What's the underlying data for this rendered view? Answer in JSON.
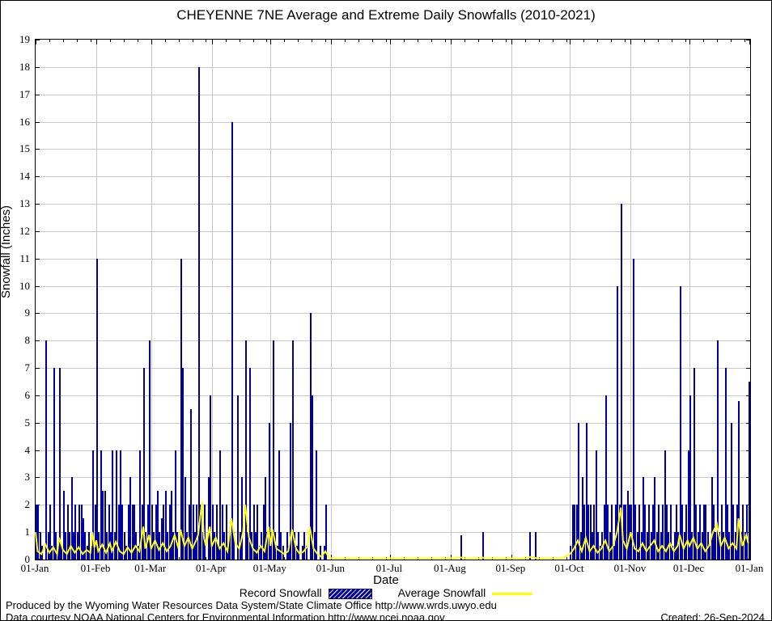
{
  "title": "CHEYENNE 7NE Average and Extreme Daily Snowfalls (2010-2021)",
  "legend": {
    "record_label": "Record Snowfall",
    "average_label": "Average Snowfall"
  },
  "footer": {
    "line1": "Produced by the Wyoming Water Resources Data System/State Climate Office http://www.wrds.uwyo.edu",
    "line2": "Data courtesy NOAA National Centers for Environmental Information http://www.ncei.noaa.gov",
    "created": "Created: 26-Sep-2024"
  },
  "colors": {
    "record_bar": "#0000a0",
    "average_line": "#ffff00",
    "gridline": "#c8c8c8",
    "axis": "#000000",
    "background": "#ffffff"
  },
  "chart_data": {
    "type": "bar",
    "title": "CHEYENNE 7NE Average and Extreme Daily Snowfalls (2010-2021)",
    "xlabel": "Date",
    "ylabel": "Snowfall (Inches)",
    "ylim": [
      0,
      19
    ],
    "y_tick_step": 1,
    "grid": true,
    "legend_position": "bottom",
    "days_in_year": 365,
    "x_tick_labels": [
      "01-Jan",
      "01-Feb",
      "01-Mar",
      "01-Apr",
      "01-May",
      "01-Jun",
      "01-Jul",
      "01-Aug",
      "01-Sep",
      "01-Oct",
      "01-Nov",
      "01-Dec",
      "01-Jan"
    ],
    "month_start_days": [
      1,
      32,
      60,
      91,
      121,
      152,
      182,
      213,
      244,
      274,
      305,
      335,
      366
    ],
    "series": [
      {
        "name": "Record Snowfall",
        "type": "bar",
        "color": "#0000a0",
        "values_daily": [
          2,
          2,
          1,
          0.5,
          0,
          8,
          1,
          2,
          0.5,
          7,
          1,
          0.5,
          7,
          0.5,
          2.5,
          1,
          2,
          1,
          3,
          1,
          2,
          1,
          2,
          2,
          1.5,
          1,
          0.5,
          1,
          0.5,
          4,
          2,
          11,
          1,
          4,
          2.5,
          2.5,
          1,
          2,
          1,
          4,
          1,
          4,
          2,
          4,
          2,
          1,
          0.5,
          2,
          3,
          2,
          2,
          1,
          0.5,
          4,
          2,
          7,
          1,
          2,
          8,
          2,
          1,
          2,
          2.5,
          1,
          1.5,
          2,
          2.5,
          1,
          2,
          2.5,
          1,
          4,
          1,
          0,
          11,
          7,
          3,
          1,
          2,
          5.5,
          2,
          1,
          2,
          18,
          2,
          1,
          2,
          0,
          3,
          6,
          2,
          1,
          2,
          0.5,
          4,
          2,
          1,
          2,
          0.5,
          1,
          16,
          1,
          0,
          6,
          1,
          3,
          0,
          8,
          1,
          7,
          1,
          2,
          1,
          2,
          0.5,
          1,
          2,
          3,
          1,
          5,
          1,
          8,
          1,
          0.5,
          4,
          1,
          0.5,
          0,
          1,
          0.5,
          5,
          8,
          1,
          0.5,
          1,
          0,
          0.5,
          1,
          0.5,
          0,
          9,
          6,
          1,
          4,
          0,
          0.5,
          0,
          0.5,
          2,
          0,
          0,
          0,
          0,
          0,
          0,
          0,
          0,
          0,
          0,
          0,
          0,
          0,
          0,
          0,
          0,
          0,
          0,
          0,
          0,
          0,
          0,
          0,
          0,
          0,
          0,
          0,
          0,
          0,
          0,
          0,
          0,
          0,
          0,
          0,
          0,
          0,
          0,
          0,
          0,
          0,
          0,
          0,
          0,
          0,
          0,
          0,
          0,
          0,
          0,
          0,
          0,
          0,
          0,
          0,
          0,
          0,
          0,
          0,
          0,
          0,
          0,
          0,
          0,
          0,
          0,
          0,
          0,
          0.9,
          0,
          0,
          0,
          0,
          0,
          0,
          0,
          0,
          0,
          0,
          1,
          0,
          0,
          0,
          0,
          0,
          0,
          0,
          0,
          0,
          0,
          0,
          0,
          0,
          0,
          0,
          0,
          0,
          0,
          0,
          0,
          0,
          0,
          0,
          1,
          0,
          0,
          1,
          0,
          0,
          0,
          0,
          0,
          0,
          0,
          0,
          0,
          0,
          0,
          0,
          0,
          0,
          0,
          0,
          0,
          0.5,
          2,
          2,
          2,
          5,
          1,
          3,
          2,
          5,
          2,
          2,
          1,
          2,
          4,
          1,
          0.5,
          1,
          2,
          6,
          2,
          1,
          2,
          0.5,
          2,
          10,
          2,
          13,
          2,
          2,
          2.5,
          2,
          2,
          11,
          2,
          1,
          2,
          1,
          3,
          2,
          1,
          2,
          1,
          2,
          3,
          1,
          2,
          1,
          2,
          4,
          2,
          1,
          2,
          0.5,
          1,
          2,
          1,
          10,
          2,
          1,
          2,
          4,
          6,
          1,
          7,
          2,
          1,
          2,
          1,
          2,
          2,
          1,
          0.5,
          3,
          2,
          1,
          8,
          1,
          2,
          1,
          7,
          2,
          1,
          5,
          2,
          1,
          2,
          5.8,
          1,
          2,
          1,
          2,
          6.5
        ]
      },
      {
        "name": "Average Snowfall",
        "type": "line",
        "color": "#ffff00",
        "points": [
          [
            1,
            1.0
          ],
          [
            2,
            0.3
          ],
          [
            4,
            0.2
          ],
          [
            6,
            0.55
          ],
          [
            8,
            0.25
          ],
          [
            10,
            0.45
          ],
          [
            12,
            0.2
          ],
          [
            13,
            0.8
          ],
          [
            15,
            0.35
          ],
          [
            17,
            0.2
          ],
          [
            19,
            0.5
          ],
          [
            21,
            0.25
          ],
          [
            23,
            0.45
          ],
          [
            25,
            0.2
          ],
          [
            27,
            0.35
          ],
          [
            29,
            0.25
          ],
          [
            30,
            1.0
          ],
          [
            31,
            0.45
          ],
          [
            32,
            0.7
          ],
          [
            33,
            0.3
          ],
          [
            35,
            0.55
          ],
          [
            37,
            0.25
          ],
          [
            39,
            0.6
          ],
          [
            40,
            0.3
          ],
          [
            42,
            0.65
          ],
          [
            44,
            0.3
          ],
          [
            46,
            0.2
          ],
          [
            48,
            0.45
          ],
          [
            50,
            0.25
          ],
          [
            52,
            0.5
          ],
          [
            54,
            0.3
          ],
          [
            56,
            1.2
          ],
          [
            57,
            0.4
          ],
          [
            59,
            0.9
          ],
          [
            60,
            0.4
          ],
          [
            62,
            0.7
          ],
          [
            64,
            0.35
          ],
          [
            66,
            0.6
          ],
          [
            68,
            0.3
          ],
          [
            70,
            0.5
          ],
          [
            72,
            0.9
          ],
          [
            74,
            0.4
          ],
          [
            75,
            1.1
          ],
          [
            77,
            0.5
          ],
          [
            79,
            0.8
          ],
          [
            81,
            0.4
          ],
          [
            83,
            0.7
          ],
          [
            84,
            0.9
          ],
          [
            86,
            2.1
          ],
          [
            87,
            0.8
          ],
          [
            88,
            0.5
          ],
          [
            90,
            1.2
          ],
          [
            91,
            0.5
          ],
          [
            93,
            0.8
          ],
          [
            95,
            0.4
          ],
          [
            97,
            0.6
          ],
          [
            99,
            0.3
          ],
          [
            101,
            1.5
          ],
          [
            103,
            0.6
          ],
          [
            105,
            0.4
          ],
          [
            107,
            1.0
          ],
          [
            108,
            2.0
          ],
          [
            110,
            0.8
          ],
          [
            112,
            0.4
          ],
          [
            114,
            0.25
          ],
          [
            116,
            0.5
          ],
          [
            118,
            0.3
          ],
          [
            120,
            1.2
          ],
          [
            121,
            0.5
          ],
          [
            122,
            1.1
          ],
          [
            124,
            0.4
          ],
          [
            126,
            0.3
          ],
          [
            128,
            0.2
          ],
          [
            130,
            0.3
          ],
          [
            132,
            1.1
          ],
          [
            134,
            0.4
          ],
          [
            136,
            0.2
          ],
          [
            138,
            0.3
          ],
          [
            140,
            0.5
          ],
          [
            141,
            1.2
          ],
          [
            143,
            0.4
          ],
          [
            145,
            0.2
          ],
          [
            147,
            0.1
          ],
          [
            149,
            0.3
          ],
          [
            151,
            0.05
          ],
          [
            155,
            0.02
          ],
          [
            215,
            0.02
          ],
          [
            218,
            0.08
          ],
          [
            220,
            0.02
          ],
          [
            228,
            0.02
          ],
          [
            229,
            0.08
          ],
          [
            231,
            0.02
          ],
          [
            252,
            0.02
          ],
          [
            254,
            0.1
          ],
          [
            257,
            0.02
          ],
          [
            270,
            0.05
          ],
          [
            274,
            0.2
          ],
          [
            276,
            0.4
          ],
          [
            278,
            0.7
          ],
          [
            280,
            0.3
          ],
          [
            282,
            0.8
          ],
          [
            284,
            0.3
          ],
          [
            286,
            0.5
          ],
          [
            288,
            0.25
          ],
          [
            290,
            0.4
          ],
          [
            292,
            0.7
          ],
          [
            294,
            0.3
          ],
          [
            296,
            0.5
          ],
          [
            298,
            1.0
          ],
          [
            300,
            1.9
          ],
          [
            301,
            0.7
          ],
          [
            303,
            0.4
          ],
          [
            305,
            1.0
          ],
          [
            307,
            0.4
          ],
          [
            309,
            0.3
          ],
          [
            311,
            0.6
          ],
          [
            313,
            0.3
          ],
          [
            315,
            0.5
          ],
          [
            317,
            0.7
          ],
          [
            319,
            0.3
          ],
          [
            321,
            0.5
          ],
          [
            323,
            0.3
          ],
          [
            325,
            0.6
          ],
          [
            327,
            0.3
          ],
          [
            329,
            0.5
          ],
          [
            330,
            0.9
          ],
          [
            332,
            0.4
          ],
          [
            334,
            0.7
          ],
          [
            335,
            0.5
          ],
          [
            337,
            0.8
          ],
          [
            339,
            0.4
          ],
          [
            341,
            0.6
          ],
          [
            343,
            0.3
          ],
          [
            345,
            0.5
          ],
          [
            347,
            1.0
          ],
          [
            349,
            1.3
          ],
          [
            351,
            0.5
          ],
          [
            353,
            0.8
          ],
          [
            355,
            0.4
          ],
          [
            357,
            0.6
          ],
          [
            359,
            0.4
          ],
          [
            360,
            1.5
          ],
          [
            362,
            0.5
          ],
          [
            364,
            0.9
          ],
          [
            365,
            0.6
          ]
        ]
      }
    ]
  }
}
